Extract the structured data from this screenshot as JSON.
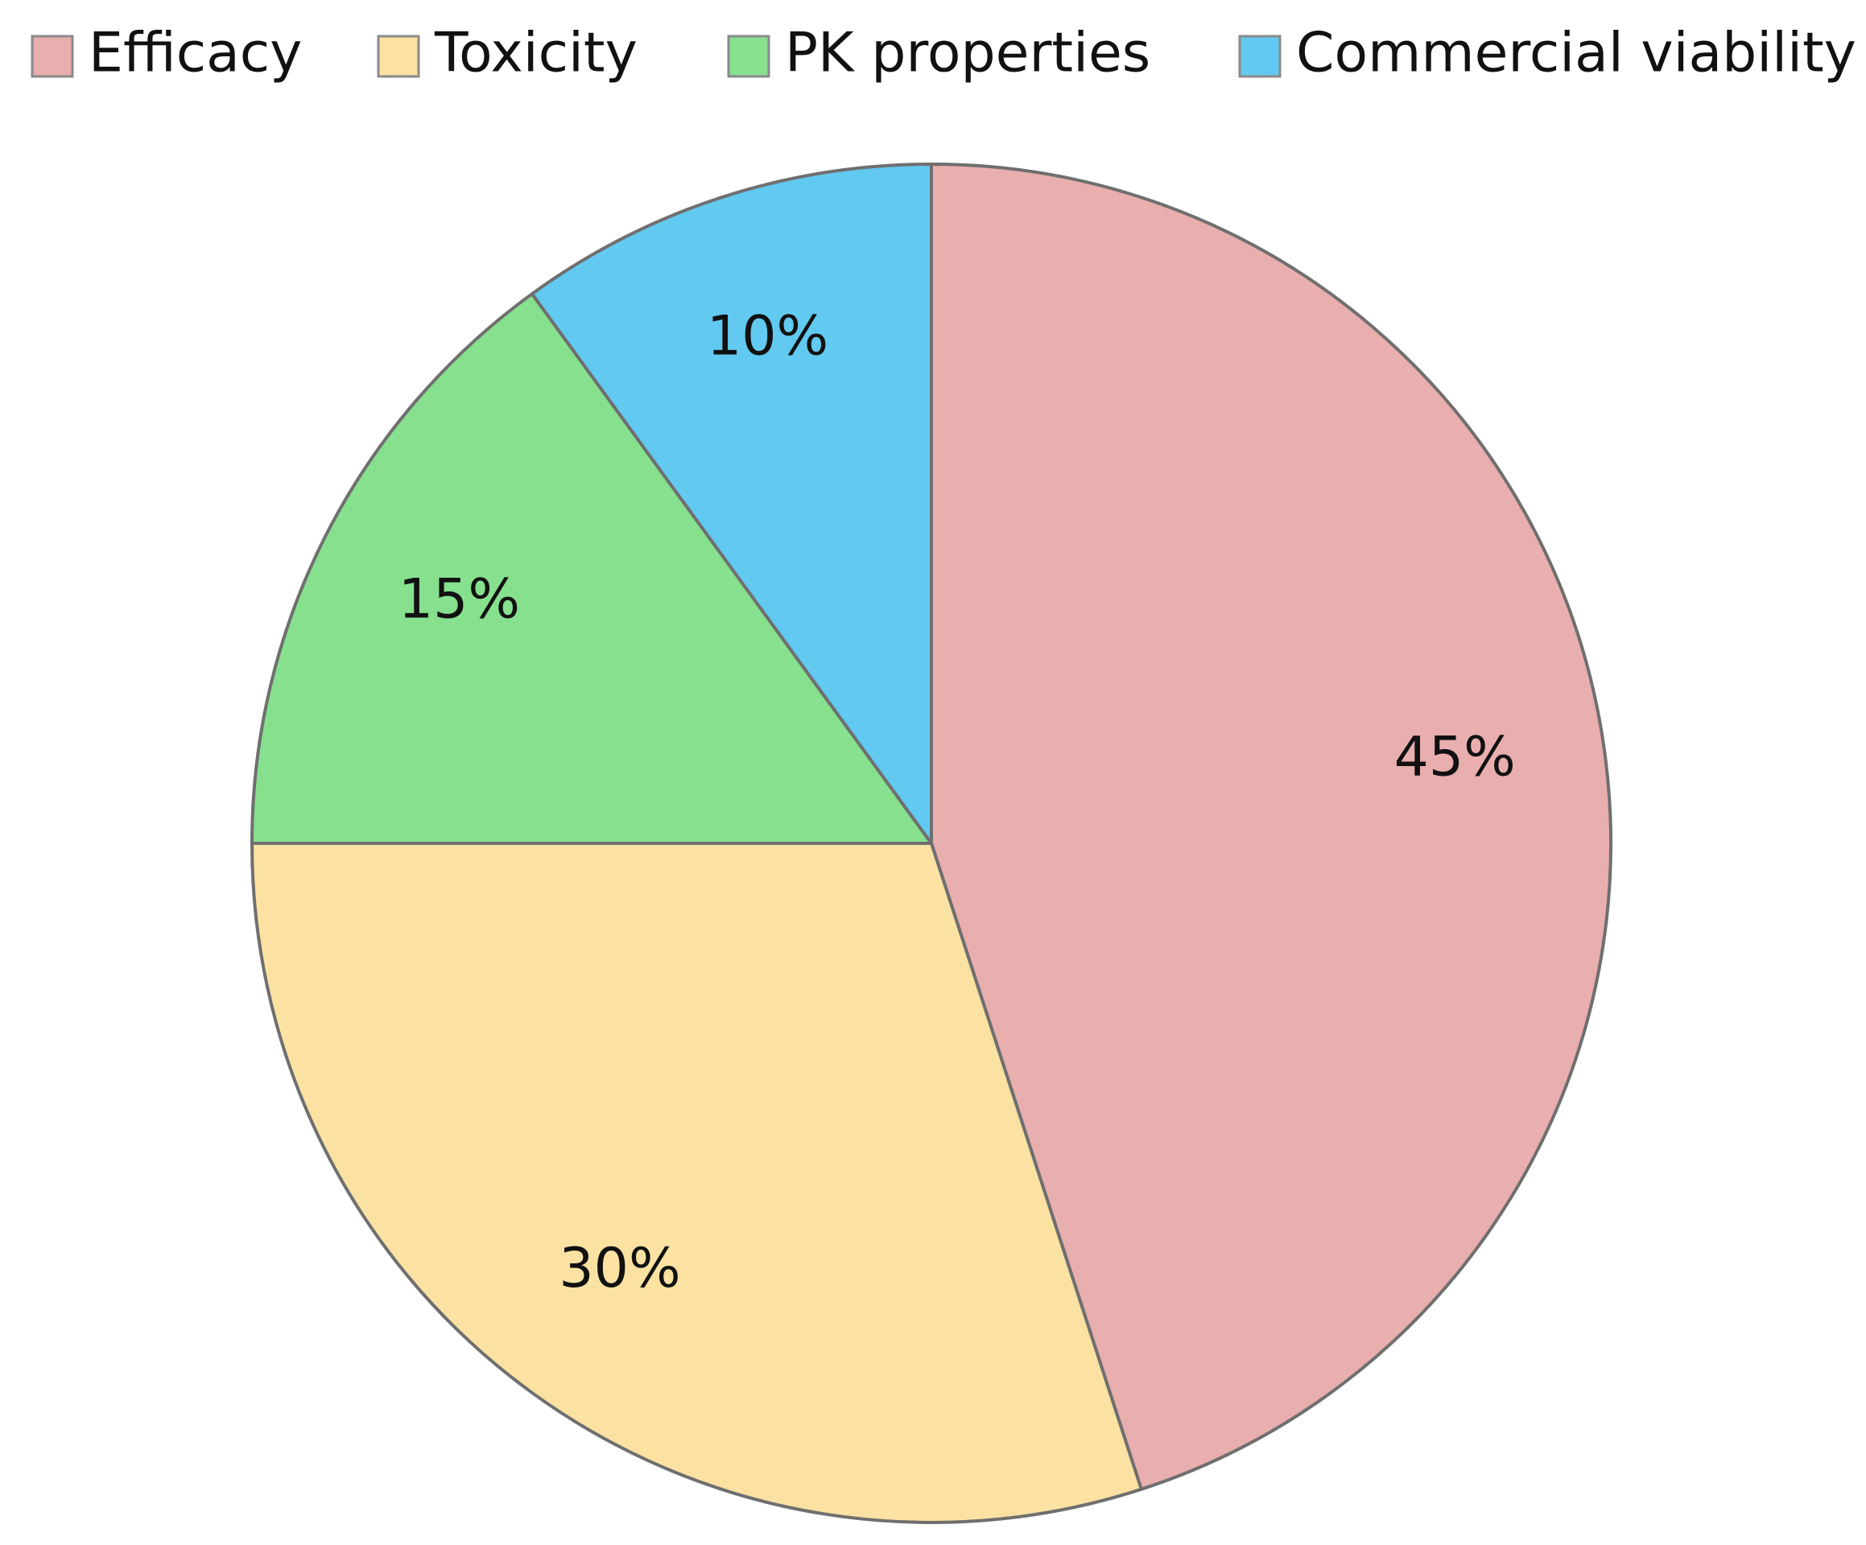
{
  "chart_data": {
    "type": "pie",
    "title": "",
    "legend_position": "top",
    "categories": [
      "Efficacy",
      "Toxicity",
      "PK properties",
      "Commercial viability"
    ],
    "values": [
      45,
      30,
      15,
      10
    ],
    "data_labels": [
      "45%",
      "30%",
      "15%",
      "10%"
    ],
    "colors": [
      "#E9AEAE",
      "#FBE2A2",
      "#86E08E",
      "#62C9F0"
    ]
  }
}
